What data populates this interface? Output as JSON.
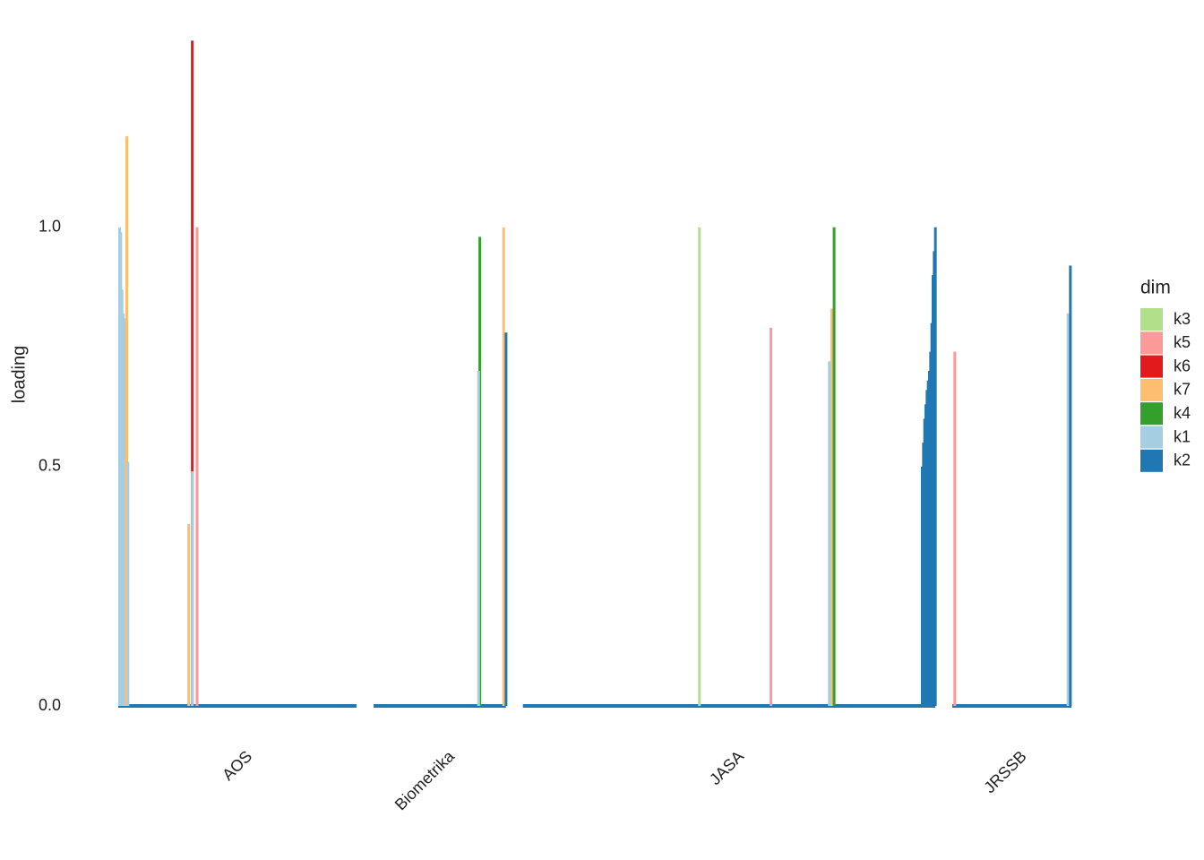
{
  "chart_data": {
    "type": "bar",
    "y_label": "loading",
    "ylim": [
      0,
      1.4
    ],
    "yticks": [
      {
        "value": 0,
        "label": "0.0"
      },
      {
        "value": 0.5,
        "label": "0.5"
      },
      {
        "value": 1,
        "label": "1.0"
      }
    ],
    "baseline_color": "#1f78b4",
    "legend_title": "dim",
    "legend": "right",
    "dims": [
      {
        "name": "k3",
        "color": "#b2df8a"
      },
      {
        "name": "k5",
        "color": "#fb9a99"
      },
      {
        "name": "k6",
        "color": "#e31a1c"
      },
      {
        "name": "k7",
        "color": "#fdbf6f"
      },
      {
        "name": "k4",
        "color": "#33a02c"
      },
      {
        "name": "k1",
        "color": "#a6cee3"
      },
      {
        "name": "k2",
        "color": "#1f78b4"
      }
    ],
    "panels": [
      {
        "name": "AOS",
        "size": 200,
        "bars": [
          {
            "dim": 5,
            "index": 0,
            "value": 1.0
          },
          {
            "dim": 5,
            "index": 1,
            "value": 0.99
          },
          {
            "dim": 5,
            "index": 2,
            "value": 0.87
          },
          {
            "dim": 5,
            "index": 3,
            "value": 0.82
          },
          {
            "dim": 5,
            "index": 4,
            "value": 0.81
          },
          {
            "dim": 5,
            "index": 5,
            "value": 0.67
          },
          {
            "dim": 5,
            "index": 6,
            "value": 0.66
          },
          {
            "dim": 3,
            "index": 6,
            "value": 1.19
          },
          {
            "dim": 5,
            "index": 7,
            "value": 0.51
          },
          {
            "dim": 3,
            "index": 58,
            "value": 0.38
          },
          {
            "dim": 2,
            "index": 61,
            "value": 1.39
          },
          {
            "dim": 5,
            "index": 61,
            "value": 0.49
          },
          {
            "dim": 1,
            "index": 65,
            "value": 1.0
          }
        ]
      },
      {
        "name": "Biometrika",
        "size": 111,
        "bars": [
          {
            "dim": 4,
            "index": 88,
            "value": 0.98
          },
          {
            "dim": 5,
            "index": 87,
            "value": 0.7
          },
          {
            "dim": 3,
            "index": 108,
            "value": 1.0
          },
          {
            "dim": 6,
            "index": 110,
            "value": 0.78
          }
        ]
      },
      {
        "name": "JASA",
        "size": 346,
        "bars": [
          {
            "dim": 0,
            "index": 147,
            "value": 1.0
          },
          {
            "dim": 1,
            "index": 207,
            "value": 0.79
          },
          {
            "dim": 5,
            "index": 256,
            "value": 0.72
          },
          {
            "dim": 3,
            "index": 258,
            "value": 0.83
          },
          {
            "dim": 4,
            "index": 260,
            "value": 1.0
          },
          {
            "dim": 6,
            "index": 334,
            "value": 0.5
          },
          {
            "dim": 6,
            "index": 335,
            "value": 0.55
          },
          {
            "dim": 6,
            "index": 336,
            "value": 0.6
          },
          {
            "dim": 6,
            "index": 337,
            "value": 0.63
          },
          {
            "dim": 6,
            "index": 338,
            "value": 0.66
          },
          {
            "dim": 6,
            "index": 339,
            "value": 0.68
          },
          {
            "dim": 6,
            "index": 340,
            "value": 0.7
          },
          {
            "dim": 6,
            "index": 341,
            "value": 0.74
          },
          {
            "dim": 6,
            "index": 342,
            "value": 0.8
          },
          {
            "dim": 6,
            "index": 343,
            "value": 0.9
          },
          {
            "dim": 6,
            "index": 344,
            "value": 0.95
          },
          {
            "dim": 6,
            "index": 345,
            "value": 1.0
          }
        ]
      },
      {
        "name": "JRSSB",
        "size": 100,
        "bars": [
          {
            "dim": 1,
            "index": 1,
            "value": 0.74
          },
          {
            "dim": 5,
            "index": 96,
            "value": 0.82
          },
          {
            "dim": 6,
            "index": 98,
            "value": 0.92
          }
        ]
      }
    ]
  }
}
